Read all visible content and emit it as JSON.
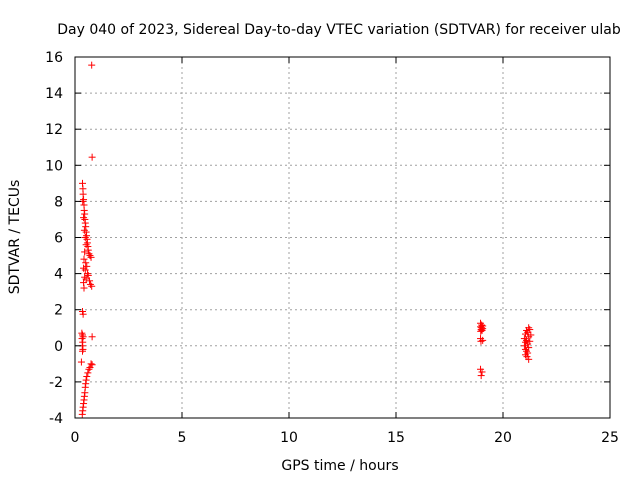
{
  "chart_data": {
    "type": "scatter",
    "title": "Day 040 of 2023, Sidereal Day-to-day VTEC variation (SDTVAR) for receiver ulab",
    "xlabel": "GPS time / hours",
    "ylabel": "SDTVAR / TECUs",
    "xlim": [
      0,
      25
    ],
    "ylim": [
      -4,
      16
    ],
    "xticks": [
      0,
      5,
      10,
      15,
      20,
      25
    ],
    "yticks": [
      -4,
      -2,
      0,
      2,
      4,
      6,
      8,
      10,
      12,
      14,
      16
    ],
    "grid": true,
    "marker": "+",
    "marker_color": "#ff0000",
    "series": [
      {
        "name": "SDTVAR",
        "points": [
          [
            0.78,
            15.55
          ],
          [
            0.8,
            10.45
          ],
          [
            0.35,
            9.0
          ],
          [
            0.37,
            8.7
          ],
          [
            0.38,
            8.4
          ],
          [
            0.4,
            8.1
          ],
          [
            0.36,
            8.0
          ],
          [
            0.42,
            7.8
          ],
          [
            0.43,
            7.5
          ],
          [
            0.45,
            7.3
          ],
          [
            0.4,
            7.1
          ],
          [
            0.46,
            7.0
          ],
          [
            0.48,
            6.8
          ],
          [
            0.5,
            6.6
          ],
          [
            0.44,
            6.4
          ],
          [
            0.52,
            6.3
          ],
          [
            0.54,
            6.1
          ],
          [
            0.48,
            6.0
          ],
          [
            0.56,
            5.9
          ],
          [
            0.58,
            5.7
          ],
          [
            0.52,
            5.6
          ],
          [
            0.6,
            5.5
          ],
          [
            0.62,
            5.3
          ],
          [
            0.45,
            5.2
          ],
          [
            0.65,
            5.1
          ],
          [
            0.7,
            5.0
          ],
          [
            0.75,
            4.9
          ],
          [
            0.42,
            4.8
          ],
          [
            0.5,
            4.6
          ],
          [
            0.55,
            4.4
          ],
          [
            0.4,
            4.3
          ],
          [
            0.48,
            4.2
          ],
          [
            0.58,
            4.0
          ],
          [
            0.62,
            3.9
          ],
          [
            0.45,
            3.8
          ],
          [
            0.52,
            3.7
          ],
          [
            0.68,
            3.6
          ],
          [
            0.4,
            3.5
          ],
          [
            0.72,
            3.4
          ],
          [
            0.78,
            3.3
          ],
          [
            0.42,
            3.2
          ],
          [
            0.35,
            1.9
          ],
          [
            0.38,
            1.75
          ],
          [
            0.8,
            0.5
          ],
          [
            0.32,
            0.7
          ],
          [
            0.35,
            0.6
          ],
          [
            0.38,
            0.5
          ],
          [
            0.33,
            0.4
          ],
          [
            0.36,
            0.2
          ],
          [
            0.34,
            0.0
          ],
          [
            0.37,
            -0.2
          ],
          [
            0.35,
            -0.3
          ],
          [
            0.3,
            -0.9
          ],
          [
            0.75,
            -1.0
          ],
          [
            0.8,
            -1.05
          ],
          [
            0.7,
            -1.2
          ],
          [
            0.65,
            -1.3
          ],
          [
            0.6,
            -1.5
          ],
          [
            0.55,
            -1.7
          ],
          [
            0.52,
            -1.9
          ],
          [
            0.5,
            -2.1
          ],
          [
            0.48,
            -2.3
          ],
          [
            0.46,
            -2.6
          ],
          [
            0.44,
            -2.8
          ],
          [
            0.42,
            -3.0
          ],
          [
            0.4,
            -3.2
          ],
          [
            0.38,
            -3.4
          ],
          [
            0.36,
            -3.6
          ],
          [
            0.34,
            -3.8
          ],
          [
            18.95,
            1.25
          ],
          [
            19.0,
            1.15
          ],
          [
            19.05,
            1.1
          ],
          [
            18.95,
            1.05
          ],
          [
            19.0,
            1.0
          ],
          [
            19.05,
            0.95
          ],
          [
            18.98,
            0.9
          ],
          [
            19.02,
            0.85
          ],
          [
            18.96,
            0.8
          ],
          [
            18.95,
            0.4
          ],
          [
            19.05,
            0.3
          ],
          [
            18.97,
            0.25
          ],
          [
            18.95,
            -1.3
          ],
          [
            19.02,
            -1.45
          ],
          [
            18.98,
            -1.65
          ],
          [
            21.2,
            1.0
          ],
          [
            21.25,
            0.9
          ],
          [
            21.1,
            0.85
          ],
          [
            21.15,
            0.75
          ],
          [
            21.05,
            0.65
          ],
          [
            21.3,
            0.6
          ],
          [
            21.2,
            0.5
          ],
          [
            21.0,
            0.4
          ],
          [
            21.1,
            0.3
          ],
          [
            21.25,
            0.25
          ],
          [
            21.05,
            0.2
          ],
          [
            21.15,
            0.1
          ],
          [
            21.0,
            0.0
          ],
          [
            21.2,
            -0.1
          ],
          [
            21.05,
            -0.2
          ],
          [
            21.1,
            -0.3
          ],
          [
            21.15,
            -0.4
          ],
          [
            21.05,
            -0.5
          ],
          [
            21.12,
            -0.6
          ],
          [
            21.2,
            -0.75
          ]
        ]
      }
    ]
  }
}
